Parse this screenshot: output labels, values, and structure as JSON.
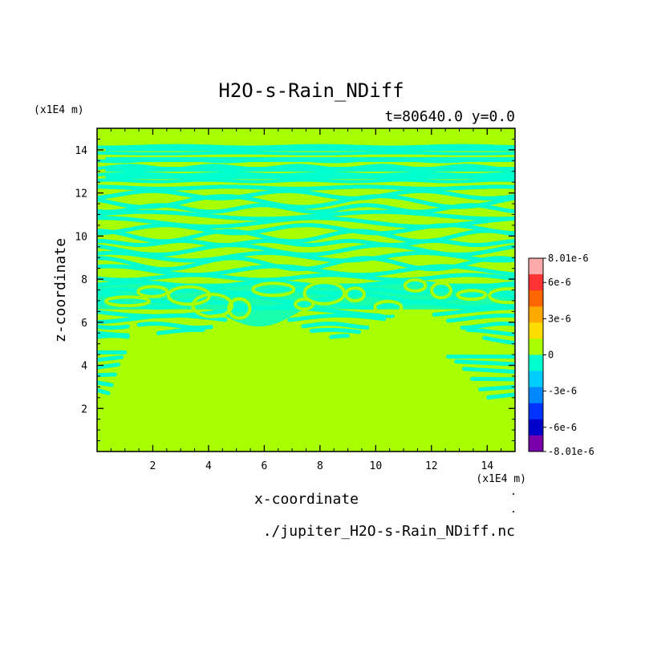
{
  "chart_data": {
    "type": "heatmap",
    "title": "H2O-s-Rain_NDiff",
    "subtitle": "t=80640.0 y=0.0",
    "xlabel": "x-coordinate",
    "ylabel": "z-coordinate",
    "x_unit": "(x1E4 m)",
    "y_unit": "(x1E4 m)",
    "footer": "./jupiter_H2O-s-Rain_NDiff.nc",
    "xlim": [
      0,
      15
    ],
    "ylim": [
      0,
      15
    ],
    "x_ticks": [
      "2",
      "4",
      "6",
      "8",
      "10",
      "12",
      "14"
    ],
    "x_tick_values": [
      2,
      4,
      6,
      8,
      10,
      12,
      14
    ],
    "y_ticks": [
      "2",
      "4",
      "6",
      "8",
      "10",
      "12",
      "14"
    ],
    "y_tick_values": [
      2,
      4,
      6,
      8,
      10,
      12,
      14
    ],
    "background_color": "#a8ff00",
    "stripe_color": "#00ffcc",
    "colorbar": {
      "min": -8.01e-06,
      "max": 8.01e-06,
      "labels": [
        "8.01e-6",
        "6e-6",
        "3e-6",
        "0",
        "-3e-6",
        "-6e-6",
        "-8.01e-6"
      ],
      "label_values": [
        8.01e-06,
        6e-06,
        3e-06,
        0,
        -3e-06,
        -6e-06,
        -8.01e-06
      ],
      "colors_top_to_bottom": [
        "#ffaaaa",
        "#ff3333",
        "#ff6600",
        "#ffaa00",
        "#ffdd00",
        "#a8ff00",
        "#00ffcc",
        "#00ccff",
        "#0088ff",
        "#0033ff",
        "#0000cc",
        "#7700aa"
      ]
    },
    "turbulent_layer": {
      "z_bottom": 5.0,
      "z_top": 14.2,
      "base_center_z": 6.5
    }
  }
}
